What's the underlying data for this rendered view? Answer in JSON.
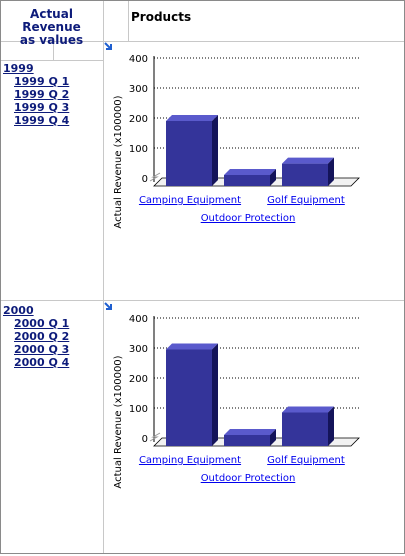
{
  "header": {
    "measure_label_line1": "Actual Revenue",
    "measure_label_line2": "as values",
    "column_label": "Products"
  },
  "rows": [
    {
      "year": "1999",
      "quarters": [
        "1999 Q 1",
        "1999 Q 2",
        "1999 Q 3",
        "1999 Q 4"
      ]
    },
    {
      "year": "2000",
      "quarters": [
        "2000 Q 1",
        "2000 Q 2",
        "2000 Q 3",
        "2000 Q 4"
      ]
    }
  ],
  "colors": {
    "bar_front": "#34349a",
    "bar_top": "#5a5acc",
    "bar_side": "#14145a",
    "link": "#0000ee",
    "header_text": "#0d1b7a"
  },
  "chart_data": [
    {
      "type": "bar",
      "ylabel": "Actual Revenue (x100000)",
      "categories": [
        "Camping Equipment",
        "Outdoor Protection",
        "Golf Equipment"
      ],
      "values": [
        190,
        10,
        48
      ],
      "ylim": [
        0,
        400
      ],
      "yticks": [
        "0",
        "100",
        "200",
        "300",
        "400"
      ],
      "grid": true
    },
    {
      "type": "bar",
      "ylabel": "Actual Revenue (x100000)",
      "categories": [
        "Camping Equipment",
        "Outdoor Protection",
        "Golf Equipment"
      ],
      "values": [
        295,
        10,
        85
      ],
      "ylim": [
        0,
        400
      ],
      "yticks": [
        "0",
        "100",
        "200",
        "300",
        "400"
      ],
      "grid": true
    }
  ]
}
